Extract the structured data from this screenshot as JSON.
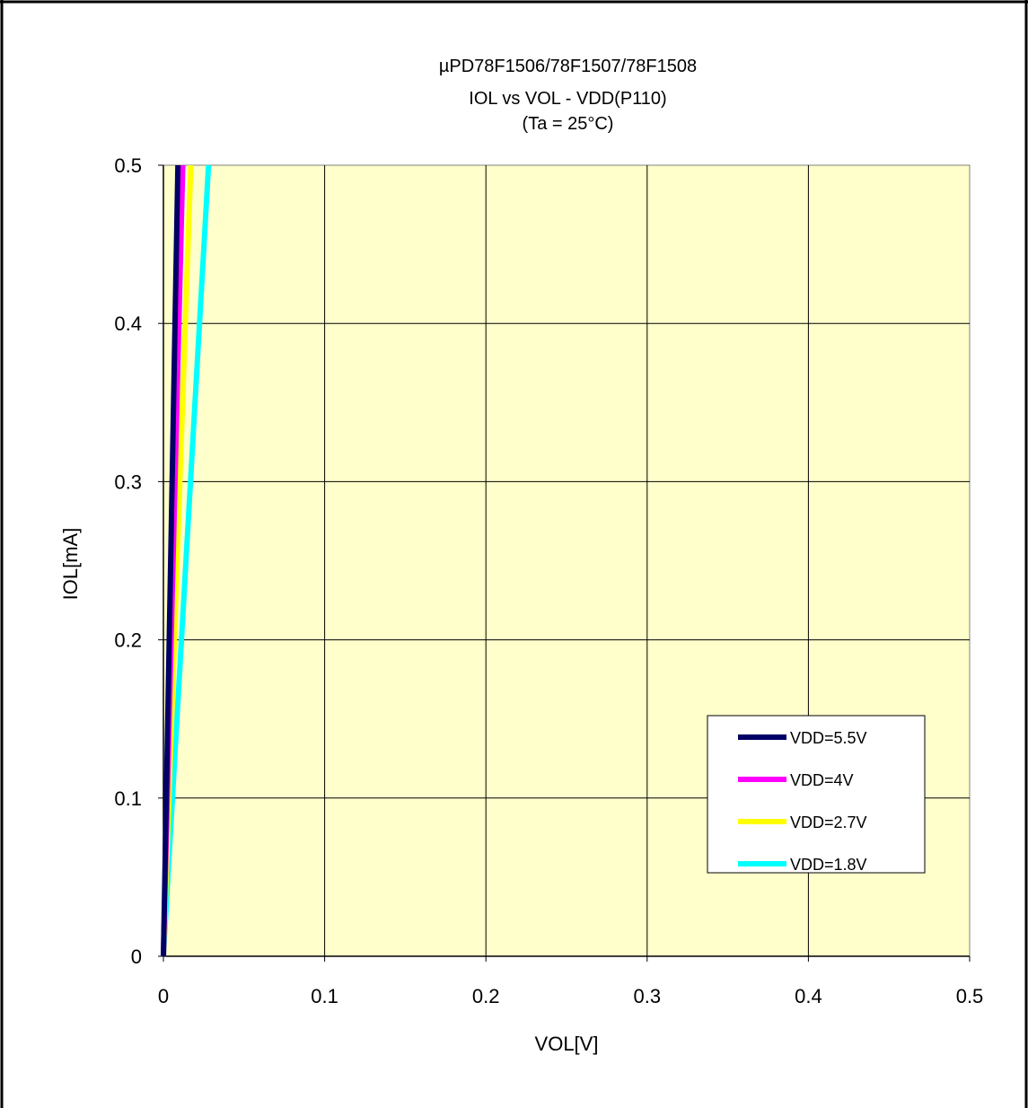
{
  "chart_data": {
    "type": "line",
    "title_lines": [
      "µPD78F1506/78F1507/78F1508",
      "IOL vs VOL  - VDD(P110)",
      "(Ta =  25°C)"
    ],
    "xlabel": "VOL[V]",
    "ylabel": "IOL[mA]",
    "xlim": [
      0,
      0.5
    ],
    "ylim": [
      0,
      0.5
    ],
    "x_ticks": [
      "0",
      "0.1",
      "0.2",
      "0.3",
      "0.4",
      "0.5"
    ],
    "y_ticks": [
      "0",
      "0.1",
      "0.2",
      "0.3",
      "0.4",
      "0.5"
    ],
    "grid": true,
    "legend_position": "bottom-right",
    "plot_background": "#FFFFCC",
    "series": [
      {
        "name": "VDD=5.5V",
        "color": "#000066",
        "x": [
          0.0,
          0.009
        ],
        "y": [
          0.0,
          0.5
        ]
      },
      {
        "name": "VDD=4V",
        "color": "#FF00FF",
        "x": [
          0.0,
          0.012
        ],
        "y": [
          0.0,
          0.5
        ]
      },
      {
        "name": "VDD=2.7V",
        "color": "#FFFF00",
        "x": [
          0.0,
          0.017
        ],
        "y": [
          0.0,
          0.5
        ]
      },
      {
        "name": "VDD=1.8V",
        "color": "#00FFFF",
        "x": [
          0.0,
          0.028
        ],
        "y": [
          0.0,
          0.5
        ]
      }
    ]
  }
}
